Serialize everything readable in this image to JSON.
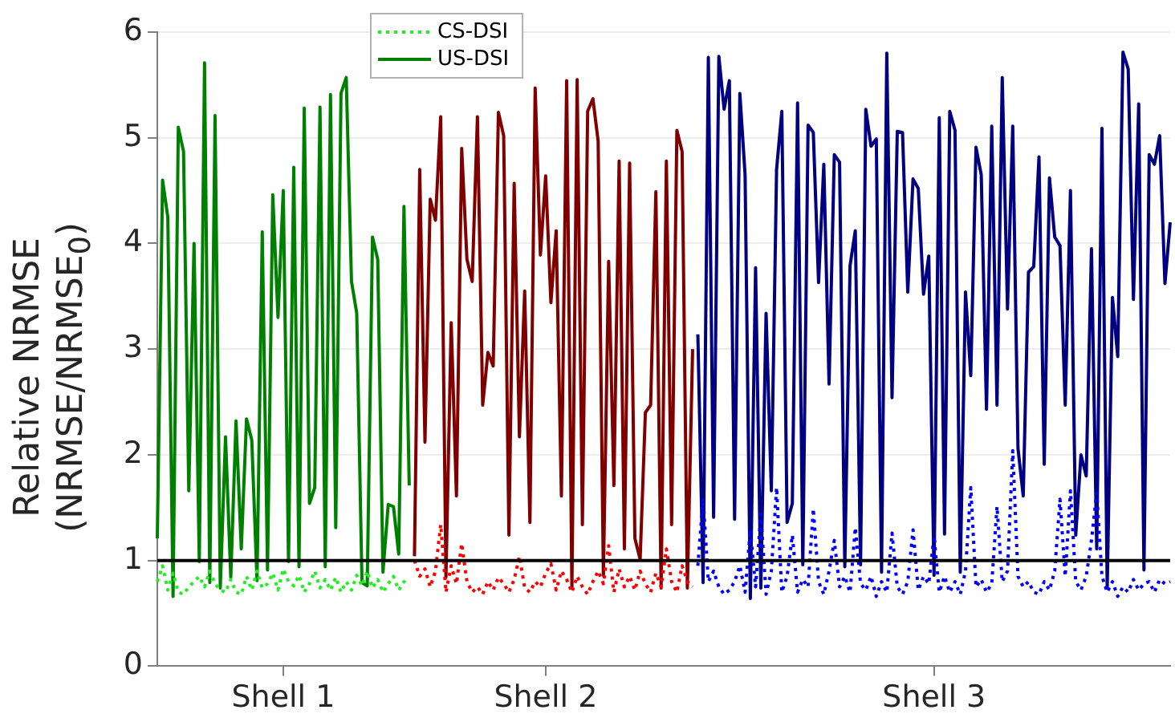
{
  "chart_data": {
    "type": "line",
    "ylabel": "Relative NRMSE\n(NRMSE/NRMSE$_{0}$)",
    "categories": [
      null,
      null,
      null,
      null,
      null,
      null,
      null,
      null,
      null,
      null,
      null,
      null,
      null,
      null,
      null,
      null,
      null,
      null,
      null,
      null,
      null,
      null,
      null,
      null,
      "Shell 1",
      null,
      null,
      null,
      null,
      null,
      null,
      null,
      null,
      null,
      null,
      null,
      null,
      null,
      null,
      null,
      null,
      null,
      null,
      null,
      null,
      null,
      null,
      null,
      null,
      null,
      null,
      null,
      null,
      null,
      null,
      null,
      null,
      null,
      null,
      null,
      null,
      null,
      null,
      null,
      null,
      null,
      null,
      null,
      null,
      null,
      null,
      null,
      null,
      null,
      "Shell 2",
      null,
      null,
      null,
      null,
      null,
      null,
      null,
      null,
      null,
      null,
      null,
      null,
      null,
      null,
      null,
      null,
      null,
      null,
      null,
      null,
      null,
      null,
      null,
      null,
      null,
      null,
      null,
      null,
      null,
      null,
      null,
      null,
      null,
      null,
      null,
      null,
      null,
      null,
      null,
      null,
      null,
      null,
      null,
      null,
      null,
      null,
      null,
      null,
      null,
      null,
      null,
      null,
      null,
      null,
      null,
      null,
      null,
      null,
      null,
      null,
      null,
      null,
      null,
      null,
      null,
      null,
      null,
      null,
      null,
      null,
      null,
      null,
      null,
      "Shell 3",
      null,
      null,
      null,
      null,
      null,
      null,
      null,
      null,
      null,
      null,
      null,
      null,
      null,
      null,
      null,
      null,
      null,
      null,
      null,
      null,
      null,
      null,
      null,
      null,
      null,
      null,
      null,
      null,
      null,
      null,
      null,
      null,
      null,
      null,
      null,
      null,
      null,
      null,
      null,
      null,
      null,
      null,
      null,
      null,
      null
    ],
    "ylim": [
      0,
      6
    ],
    "yticks": [
      0,
      1,
      2,
      3,
      4,
      5,
      6
    ],
    "grid": "y",
    "legend": "top left",
    "marker": "none",
    "ref_lines": [
      {
        "axis": "y",
        "value": 1,
        "color": "#000000"
      }
    ],
    "series": [
      {
        "name": "CS-DSI",
        "color": "#22ee22",
        "line_style": "dotted",
        "values": [
          0.8,
          0.95,
          0.72,
          0.88,
          0.7,
          0.68,
          0.75,
          0.8,
          0.85,
          0.75,
          0.9,
          0.78,
          0.72,
          0.7,
          0.82,
          0.7,
          0.68,
          0.85,
          0.72,
          0.9,
          0.74,
          0.78,
          0.88,
          0.72,
          0.92,
          0.8,
          0.76,
          0.86,
          0.7,
          0.78,
          0.9,
          0.74,
          0.82,
          0.72,
          0.84,
          0.7,
          0.8,
          0.72,
          0.86,
          0.76,
          0.9,
          0.74,
          0.82,
          0.7,
          0.78,
          0.85,
          0.72,
          0.8,
          0.76,
          null,
          null,
          null,
          null,
          null,
          null,
          null,
          null,
          null,
          null,
          null,
          null,
          null,
          null,
          null,
          null,
          null,
          null,
          null,
          null,
          null,
          null,
          null,
          null,
          null,
          null,
          null,
          null,
          null,
          null,
          null,
          null,
          null,
          null,
          null,
          null,
          null,
          null,
          null,
          null,
          null,
          null,
          null,
          null,
          null,
          null,
          null,
          null,
          null,
          null,
          null,
          null,
          null,
          null,
          null,
          null,
          null,
          null,
          null,
          null,
          null,
          null,
          null,
          null,
          null,
          null,
          null,
          null,
          null,
          null,
          null,
          null,
          null,
          null,
          null,
          null,
          null,
          null,
          null,
          null,
          null,
          null,
          null,
          null,
          null,
          null,
          null,
          null,
          null,
          null,
          null,
          null,
          null,
          null,
          null,
          null,
          null,
          null,
          null,
          null,
          null,
          null,
          null,
          null,
          null,
          null,
          null,
          null,
          null,
          null,
          null,
          null,
          null,
          null,
          null,
          null,
          null,
          null,
          null,
          null,
          null,
          null,
          null,
          null,
          null,
          null,
          null,
          null,
          null,
          null,
          null,
          null,
          null,
          null,
          null,
          null,
          null,
          null,
          null,
          null,
          null,
          null,
          null,
          null,
          null
        ]
      },
      {
        "name": "US-DSI",
        "color": "#008000",
        "line_style": "solid",
        "values": [
          1.21,
          4.6,
          4.25,
          0.66,
          5.1,
          4.87,
          1.66,
          4.0,
          0.99,
          5.71,
          0.79,
          5.21,
          0.74,
          2.17,
          0.84,
          2.32,
          1.11,
          2.34,
          2.14,
          0.81,
          4.11,
          0.91,
          4.46,
          3.3,
          4.5,
          0.99,
          4.72,
          0.94,
          5.28,
          1.54,
          1.69,
          5.29,
          0.94,
          5.41,
          1.31,
          5.42,
          5.57,
          3.64,
          3.34,
          0.79,
          0.76,
          4.06,
          3.85,
          0.89,
          1.53,
          1.51,
          1.06,
          4.35,
          1.71,
          null,
          null,
          null,
          null,
          null,
          null,
          null,
          null,
          null,
          null,
          null,
          null,
          null,
          null,
          null,
          null,
          null,
          null,
          null,
          null,
          null,
          null,
          null,
          null,
          null,
          null,
          null,
          null,
          null,
          null,
          null,
          null,
          null,
          null,
          null,
          null,
          null,
          null,
          null,
          null,
          null,
          null,
          null,
          null,
          null,
          null,
          null,
          null,
          null,
          null,
          null,
          null,
          null,
          null,
          null,
          null,
          null,
          null,
          null,
          null,
          null,
          null,
          null,
          null,
          null,
          null,
          null,
          null,
          null,
          null,
          null,
          null,
          null,
          null,
          null,
          null,
          null,
          null,
          null,
          null,
          null,
          null,
          null,
          null,
          null,
          null,
          null,
          null,
          null,
          null,
          null,
          null,
          null,
          null,
          null,
          null,
          null,
          null,
          null,
          null,
          null,
          null,
          null,
          null,
          null,
          null,
          null,
          null,
          null,
          null,
          null,
          null,
          null,
          null,
          null,
          null,
          null,
          null,
          null,
          null,
          null,
          null,
          null,
          null,
          null,
          null,
          null,
          null,
          null,
          null,
          null,
          null,
          null,
          null,
          null,
          null,
          null,
          null,
          null,
          null,
          null,
          null,
          null,
          null,
          null
        ]
      },
      {
        "color": "#ff0000",
        "line_style": "dotted",
        "values": [
          null,
          null,
          null,
          null,
          null,
          null,
          null,
          null,
          null,
          null,
          null,
          null,
          null,
          null,
          null,
          null,
          null,
          null,
          null,
          null,
          null,
          null,
          null,
          null,
          null,
          null,
          null,
          null,
          null,
          null,
          null,
          null,
          null,
          null,
          null,
          null,
          null,
          null,
          null,
          null,
          null,
          null,
          null,
          null,
          null,
          null,
          null,
          null,
          null,
          1.0,
          0.85,
          0.92,
          0.75,
          0.9,
          1.34,
          0.7,
          0.95,
          0.78,
          1.16,
          0.8,
          0.7,
          0.75,
          0.68,
          0.8,
          0.72,
          0.84,
          0.78,
          0.7,
          0.82,
          1.04,
          0.74,
          0.7,
          0.8,
          0.75,
          0.88,
          0.97,
          0.72,
          0.9,
          0.82,
          0.7,
          0.85,
          0.75,
          0.68,
          0.8,
          0.9,
          0.78,
          1.14,
          0.7,
          0.92,
          0.75,
          0.85,
          0.72,
          0.9,
          0.78,
          0.7,
          0.88,
          0.75,
          1.11,
          0.8,
          0.7,
          0.95,
          0.8,
          0.75,
          null,
          null,
          null,
          null,
          null,
          null,
          null,
          null,
          null,
          null,
          null,
          null,
          null,
          null,
          null,
          null,
          null,
          null,
          null,
          null,
          null,
          null,
          null,
          null,
          null,
          null,
          null,
          null,
          null,
          null,
          null,
          null,
          null,
          null,
          null,
          null,
          null,
          null,
          null,
          null,
          null,
          null,
          null,
          null,
          null,
          null,
          null,
          null,
          null,
          null,
          null,
          null,
          null,
          null,
          null,
          null,
          null,
          null,
          null,
          null,
          null,
          null,
          null,
          null,
          null,
          null,
          null,
          null,
          null,
          null,
          null,
          null,
          null,
          null,
          null,
          null,
          null,
          null,
          null,
          null,
          null,
          null,
          null,
          null,
          null,
          null,
          null,
          null,
          null,
          null,
          null
        ]
      },
      {
        "color": "#800000",
        "line_style": "solid",
        "values": [
          null,
          null,
          null,
          null,
          null,
          null,
          null,
          null,
          null,
          null,
          null,
          null,
          null,
          null,
          null,
          null,
          null,
          null,
          null,
          null,
          null,
          null,
          null,
          null,
          null,
          null,
          null,
          null,
          null,
          null,
          null,
          null,
          null,
          null,
          null,
          null,
          null,
          null,
          null,
          null,
          null,
          null,
          null,
          null,
          null,
          null,
          null,
          null,
          null,
          1.04,
          4.7,
          2.12,
          4.42,
          4.22,
          5.2,
          0.84,
          3.25,
          1.61,
          4.9,
          3.85,
          3.64,
          5.2,
          2.47,
          2.97,
          2.84,
          5.24,
          5.02,
          1.24,
          4.57,
          2.17,
          3.55,
          1.36,
          5.47,
          3.89,
          4.64,
          3.44,
          4.12,
          1.61,
          5.54,
          0.74,
          5.55,
          1.34,
          5.25,
          5.37,
          4.97,
          0.86,
          3.83,
          1.71,
          4.78,
          1.11,
          4.76,
          1.21,
          1.01,
          2.4,
          2.47,
          4.49,
          0.74,
          4.78,
          1.34,
          5.07,
          4.87,
          0.74,
          3.0,
          null,
          null,
          null,
          null,
          null,
          null,
          null,
          null,
          null,
          null,
          null,
          null,
          null,
          null,
          null,
          null,
          null,
          null,
          null,
          null,
          null,
          null,
          null,
          null,
          null,
          null,
          null,
          null,
          null,
          null,
          null,
          null,
          null,
          null,
          null,
          null,
          null,
          null,
          null,
          null,
          null,
          null,
          null,
          null,
          null,
          null,
          null,
          null,
          null,
          null,
          null,
          null,
          null,
          null,
          null,
          null,
          null,
          null,
          null,
          null,
          null,
          null,
          null,
          null,
          null,
          null,
          null,
          null,
          null,
          null,
          null,
          null,
          null,
          null,
          null,
          null,
          null,
          null,
          null,
          null,
          null,
          null,
          null,
          null,
          null,
          null,
          null,
          null,
          null,
          null,
          null
        ]
      },
      {
        "color": "#0000ff",
        "line_style": "dotted",
        "values": [
          null,
          null,
          null,
          null,
          null,
          null,
          null,
          null,
          null,
          null,
          null,
          null,
          null,
          null,
          null,
          null,
          null,
          null,
          null,
          null,
          null,
          null,
          null,
          null,
          null,
          null,
          null,
          null,
          null,
          null,
          null,
          null,
          null,
          null,
          null,
          null,
          null,
          null,
          null,
          null,
          null,
          null,
          null,
          null,
          null,
          null,
          null,
          null,
          null,
          null,
          null,
          null,
          null,
          null,
          null,
          null,
          null,
          null,
          null,
          null,
          null,
          null,
          null,
          null,
          null,
          null,
          null,
          null,
          null,
          null,
          null,
          null,
          null,
          null,
          null,
          null,
          null,
          null,
          null,
          null,
          null,
          null,
          null,
          null,
          null,
          null,
          null,
          null,
          null,
          null,
          null,
          null,
          null,
          null,
          null,
          null,
          null,
          null,
          null,
          null,
          null,
          null,
          null,
          0.95,
          1.59,
          0.8,
          0.9,
          0.75,
          0.68,
          0.72,
          0.8,
          0.95,
          0.7,
          1.29,
          0.75,
          1.44,
          0.68,
          0.9,
          1.69,
          0.7,
          0.85,
          1.24,
          0.7,
          0.82,
          0.75,
          1.49,
          0.8,
          0.68,
          0.9,
          1.19,
          0.75,
          0.85,
          0.7,
          1.31,
          0.78,
          0.72,
          0.85,
          0.66,
          0.8,
          0.7,
          1.26,
          0.75,
          0.68,
          0.8,
          1.29,
          0.72,
          0.85,
          0.78,
          1.23,
          0.7,
          0.85,
          0.7,
          0.8,
          0.68,
          0.9,
          1.69,
          0.75,
          0.82,
          0.7,
          0.78,
          1.51,
          0.8,
          0.9,
          2.04,
          0.85,
          0.75,
          0.8,
          0.7,
          0.68,
          0.8,
          0.72,
          0.9,
          1.58,
          0.85,
          1.66,
          0.8,
          0.72,
          0.85,
          1.19,
          1.64,
          0.85,
          0.7,
          0.8,
          0.66,
          0.75,
          0.7,
          0.82,
          0.72,
          0.78,
          0.8,
          0.7,
          0.82,
          0.78,
          0.8
        ]
      },
      {
        "color": "#000080",
        "line_style": "solid",
        "values": [
          null,
          null,
          null,
          null,
          null,
          null,
          null,
          null,
          null,
          null,
          null,
          null,
          null,
          null,
          null,
          null,
          null,
          null,
          null,
          null,
          null,
          null,
          null,
          null,
          null,
          null,
          null,
          null,
          null,
          null,
          null,
          null,
          null,
          null,
          null,
          null,
          null,
          null,
          null,
          null,
          null,
          null,
          null,
          null,
          null,
          null,
          null,
          null,
          null,
          null,
          null,
          null,
          null,
          null,
          null,
          null,
          null,
          null,
          null,
          null,
          null,
          null,
          null,
          null,
          null,
          null,
          null,
          null,
          null,
          null,
          null,
          null,
          null,
          null,
          null,
          null,
          null,
          null,
          null,
          null,
          null,
          null,
          null,
          null,
          null,
          null,
          null,
          null,
          null,
          null,
          null,
          null,
          null,
          null,
          null,
          null,
          null,
          null,
          null,
          null,
          null,
          null,
          null,
          3.14,
          0.79,
          5.76,
          1.41,
          5.77,
          5.27,
          5.54,
          1.39,
          5.42,
          4.65,
          0.64,
          3.77,
          0.74,
          3.34,
          1.66,
          4.7,
          5.25,
          1.36,
          1.54,
          5.33,
          0.96,
          5.12,
          5.05,
          3.63,
          4.75,
          2.67,
          4.84,
          4.77,
          0.94,
          3.79,
          4.12,
          0.96,
          5.27,
          4.92,
          4.99,
          0.89,
          5.8,
          2.54,
          5.06,
          5.05,
          3.54,
          4.61,
          4.52,
          3.52,
          3.88,
          0.86,
          5.19,
          1.25,
          5.25,
          5.07,
          0.89,
          3.54,
          2.75,
          4.91,
          4.65,
          2.43,
          5.11,
          2.47,
          5.57,
          3.38,
          5.11,
          2.06,
          1.61,
          3.73,
          3.78,
          4.82,
          1.91,
          4.62,
          4.06,
          3.98,
          2.47,
          4.5,
          1.24,
          2.0,
          1.8,
          3.95,
          1.11,
          5.09,
          0.74,
          3.49,
          2.93,
          5.81,
          5.65,
          3.47,
          5.32,
          0.91,
          4.84,
          4.75,
          5.02,
          3.62,
          4.2
        ]
      }
    ]
  }
}
